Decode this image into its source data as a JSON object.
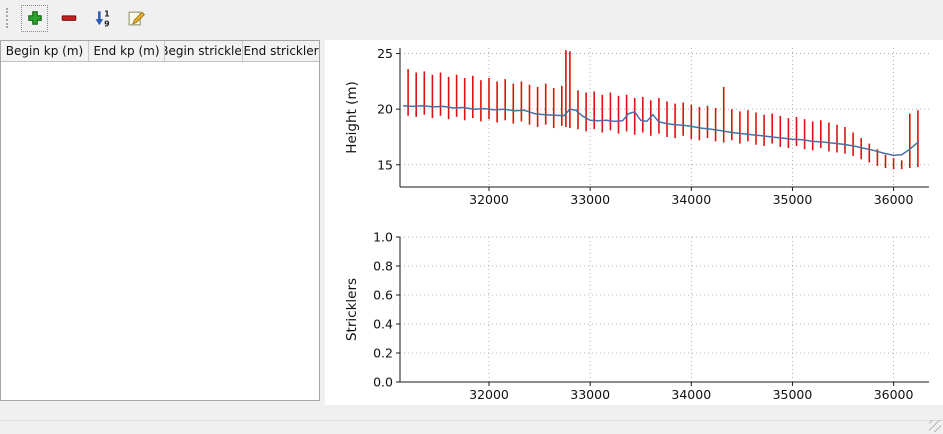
{
  "toolbar": {
    "add_color": "#2ca52c",
    "remove_color": "#cc2020",
    "sort_color": "#2a5db0",
    "sort_top_digit": "1",
    "sort_bottom_digit": "9"
  },
  "table": {
    "columns": [
      "Begin kp (m)",
      "End kp (m)",
      "Begin strickler",
      "End strickler"
    ],
    "rows": []
  },
  "chart_data": [
    {
      "type": "line+rangebars",
      "title": "",
      "xlabel": "",
      "ylabel": "Height (m)",
      "xlim": [
        31120,
        36350
      ],
      "ylim": [
        13.0,
        25.5
      ],
      "xticks": [
        32000,
        33000,
        34000,
        35000,
        36000
      ],
      "xtick_labels": [
        "32000",
        "33000",
        "34000",
        "35000",
        "36000"
      ],
      "yticks": [
        15,
        20,
        25
      ],
      "ytick_labels": [
        "15",
        "20",
        "25"
      ],
      "grid": "dotted",
      "legend": "none",
      "bar_color": "#dd1111",
      "line_color": "#4a6fa5",
      "bars": [
        [
          31200,
          19.4,
          23.6
        ],
        [
          31280,
          19.3,
          23.3
        ],
        [
          31360,
          19.5,
          23.4
        ],
        [
          31440,
          19.2,
          23.1
        ],
        [
          31520,
          19.4,
          23.3
        ],
        [
          31600,
          19.1,
          22.9
        ],
        [
          31680,
          19.3,
          23.1
        ],
        [
          31760,
          19.0,
          22.8
        ],
        [
          31840,
          19.2,
          23.0
        ],
        [
          31920,
          18.9,
          22.6
        ],
        [
          32000,
          19.1,
          22.8
        ],
        [
          32080,
          18.8,
          22.5
        ],
        [
          32160,
          19.0,
          22.7
        ],
        [
          32240,
          18.7,
          22.3
        ],
        [
          32320,
          18.9,
          22.5
        ],
        [
          32400,
          18.6,
          22.2
        ],
        [
          32480,
          18.4,
          22.0
        ],
        [
          32560,
          18.6,
          22.3
        ],
        [
          32640,
          18.3,
          21.9
        ],
        [
          32720,
          18.5,
          22.1
        ],
        [
          32760,
          18.4,
          25.3
        ],
        [
          32800,
          18.3,
          25.2
        ],
        [
          32880,
          18.2,
          21.7
        ],
        [
          32960,
          18.0,
          21.5
        ],
        [
          33040,
          18.2,
          21.6
        ],
        [
          33120,
          17.9,
          21.3
        ],
        [
          33200,
          18.1,
          21.5
        ],
        [
          33280,
          17.8,
          21.2
        ],
        [
          33360,
          18.0,
          21.3
        ],
        [
          33440,
          17.7,
          21.0
        ],
        [
          33520,
          17.9,
          21.1
        ],
        [
          33600,
          17.6,
          20.8
        ],
        [
          33680,
          17.8,
          21.0
        ],
        [
          33760,
          17.5,
          20.7
        ],
        [
          33840,
          17.4,
          20.5
        ],
        [
          33920,
          17.6,
          20.6
        ],
        [
          34000,
          17.3,
          20.4
        ],
        [
          34080,
          17.2,
          20.2
        ],
        [
          34160,
          17.4,
          20.3
        ],
        [
          34240,
          17.1,
          20.1
        ],
        [
          34320,
          17.0,
          22.0
        ],
        [
          34400,
          17.2,
          20.0
        ],
        [
          34480,
          16.9,
          19.8
        ],
        [
          34560,
          17.1,
          19.9
        ],
        [
          34640,
          16.8,
          19.7
        ],
        [
          34720,
          16.7,
          19.5
        ],
        [
          34800,
          16.9,
          19.6
        ],
        [
          34880,
          16.6,
          19.4
        ],
        [
          34960,
          16.5,
          19.2
        ],
        [
          35040,
          16.7,
          19.3
        ],
        [
          35120,
          16.4,
          19.1
        ],
        [
          35200,
          16.3,
          18.9
        ],
        [
          35280,
          16.5,
          19.0
        ],
        [
          35360,
          16.2,
          18.8
        ],
        [
          35440,
          16.1,
          18.6
        ],
        [
          35520,
          16.0,
          18.4
        ],
        [
          35600,
          15.8,
          17.9
        ],
        [
          35680,
          15.5,
          17.4
        ],
        [
          35760,
          15.2,
          16.9
        ],
        [
          35840,
          14.9,
          16.4
        ],
        [
          35920,
          14.7,
          15.9
        ],
        [
          36000,
          14.6,
          15.6
        ],
        [
          36080,
          14.6,
          15.4
        ],
        [
          36160,
          14.7,
          19.6
        ],
        [
          36240,
          14.8,
          19.9
        ]
      ],
      "line": [
        [
          31150,
          20.3
        ],
        [
          31250,
          20.25
        ],
        [
          31350,
          20.3
        ],
        [
          31450,
          20.2
        ],
        [
          31550,
          20.25
        ],
        [
          31650,
          20.1
        ],
        [
          31750,
          20.15
        ],
        [
          31850,
          20.0
        ],
        [
          31950,
          20.05
        ],
        [
          32050,
          19.95
        ],
        [
          32150,
          20.0
        ],
        [
          32250,
          19.85
        ],
        [
          32350,
          19.9
        ],
        [
          32450,
          19.6
        ],
        [
          32550,
          19.5
        ],
        [
          32650,
          19.45
        ],
        [
          32740,
          19.4
        ],
        [
          32800,
          20.0
        ],
        [
          32860,
          19.9
        ],
        [
          32920,
          19.4
        ],
        [
          33000,
          19.0
        ],
        [
          33080,
          18.95
        ],
        [
          33160,
          19.0
        ],
        [
          33240,
          18.9
        ],
        [
          33320,
          18.95
        ],
        [
          33380,
          19.6
        ],
        [
          33440,
          19.75
        ],
        [
          33500,
          19.0
        ],
        [
          33560,
          18.9
        ],
        [
          33620,
          19.5
        ],
        [
          33680,
          18.85
        ],
        [
          33760,
          18.7
        ],
        [
          33840,
          18.6
        ],
        [
          33920,
          18.55
        ],
        [
          34000,
          18.45
        ],
        [
          34100,
          18.3
        ],
        [
          34200,
          18.2
        ],
        [
          34300,
          18.05
        ],
        [
          34400,
          17.9
        ],
        [
          34500,
          17.8
        ],
        [
          34600,
          17.7
        ],
        [
          34700,
          17.6
        ],
        [
          34800,
          17.5
        ],
        [
          34900,
          17.4
        ],
        [
          35000,
          17.3
        ],
        [
          35100,
          17.25
        ],
        [
          35200,
          17.1
        ],
        [
          35300,
          17.05
        ],
        [
          35400,
          16.95
        ],
        [
          35500,
          16.85
        ],
        [
          35600,
          16.7
        ],
        [
          35700,
          16.5
        ],
        [
          35800,
          16.3
        ],
        [
          35900,
          16.05
        ],
        [
          36000,
          15.85
        ],
        [
          36080,
          15.9
        ],
        [
          36160,
          16.4
        ],
        [
          36250,
          17.1
        ]
      ]
    },
    {
      "type": "empty",
      "title": "",
      "xlabel": "",
      "ylabel": "Stricklers",
      "xlim": [
        31120,
        36350
      ],
      "ylim": [
        0,
        1
      ],
      "xticks": [
        32000,
        33000,
        34000,
        35000,
        36000
      ],
      "xtick_labels": [
        "32000",
        "33000",
        "34000",
        "35000",
        "36000"
      ],
      "yticks": [
        0,
        0.2,
        0.4,
        0.6,
        0.8,
        1.0
      ],
      "ytick_labels": [
        "0.0",
        "0.2",
        "0.4",
        "0.6",
        "0.8",
        "1.0"
      ],
      "grid": "dotted",
      "legend": "none",
      "bars": [],
      "line": null
    }
  ]
}
